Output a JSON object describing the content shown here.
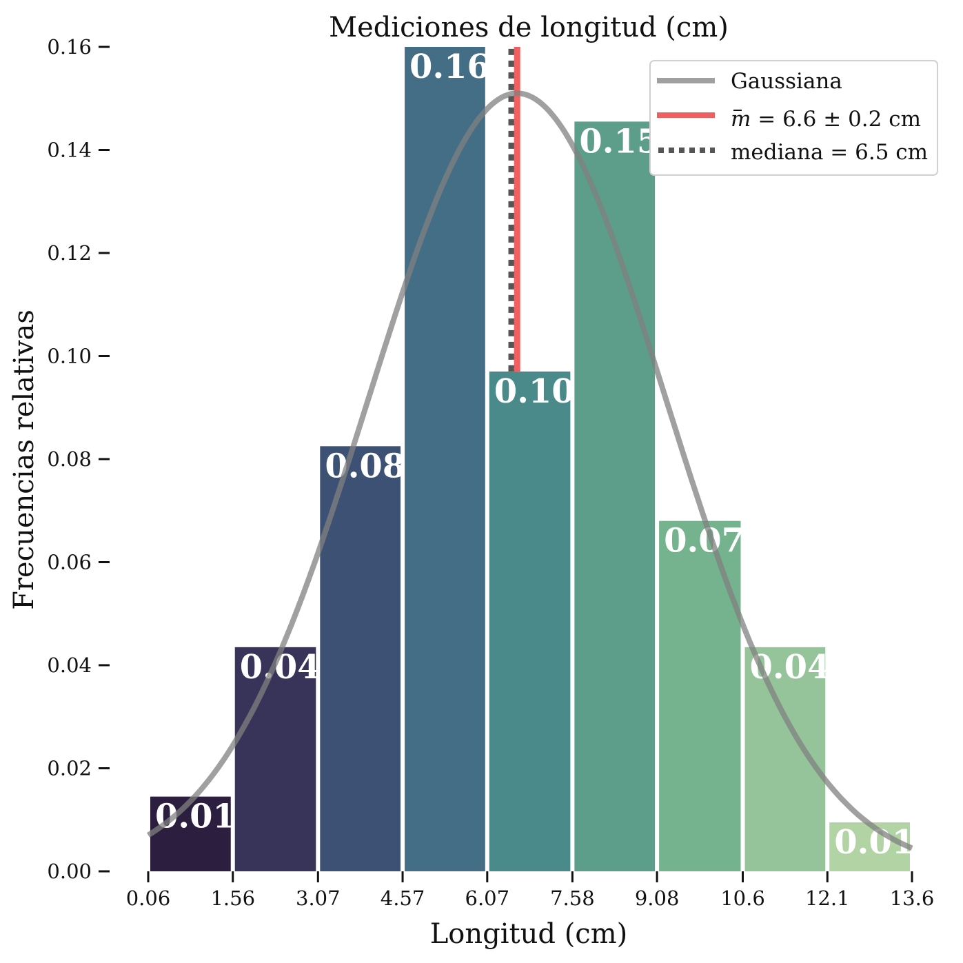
{
  "chart_data": {
    "type": "bar",
    "title": "Mediciones de longitud (cm)",
    "xlabel": "Longitud (cm)",
    "ylabel": "Frecuencias relativas",
    "bin_edges": [
      0.06,
      1.56,
      3.07,
      4.57,
      6.07,
      7.58,
      9.08,
      10.6,
      12.1,
      13.6
    ],
    "x_tick_labels": [
      "0.06",
      "1.56",
      "3.07",
      "4.57",
      "6.07",
      "7.58",
      "9.08",
      "10.6",
      "12.1",
      "13.6"
    ],
    "values": [
      0.0145,
      0.0435,
      0.0825,
      0.16,
      0.097,
      0.1455,
      0.068,
      0.0435,
      0.0095
    ],
    "bar_labels": [
      "0.01",
      "0.04",
      "0.08",
      "0.16",
      "0.10",
      "0.15",
      "0.07",
      "0.04",
      "0.01"
    ],
    "bar_colors": [
      "#2b1e3e",
      "#383459",
      "#3d5174",
      "#436e86",
      "#4a8a8b",
      "#5c9e89",
      "#75b38f",
      "#96c49a",
      "#b2d3a4"
    ],
    "ylim": [
      0,
      0.16
    ],
    "y_ticks": [
      "0.00",
      "0.02",
      "0.04",
      "0.06",
      "0.08",
      "0.10",
      "0.12",
      "0.14",
      "0.16"
    ],
    "xlim": [
      0.06,
      13.6
    ],
    "gaussian": {
      "mean": 6.6,
      "sigma": 2.64,
      "peak": 0.151,
      "color": "#808080"
    },
    "mean_line": {
      "x": 6.6,
      "y_top": 0.16,
      "y_bottom": 0.097,
      "color": "#f06060"
    },
    "median_line": {
      "x": 6.5,
      "y_top": 0.16,
      "y_bottom": 0.097,
      "color": "#555555"
    },
    "legend": {
      "position": "top-right",
      "gaussian_label": "Gaussiana",
      "mean_symbol": "m",
      "mean_label": " = 6.6 ± 0.2 cm",
      "median_label": "mediana = 6.5 cm"
    },
    "grid": false
  }
}
